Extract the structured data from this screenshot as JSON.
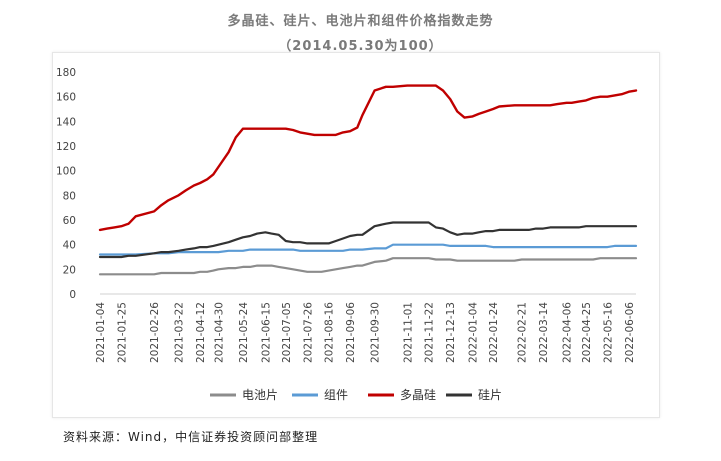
{
  "chart_data": {
    "type": "line",
    "title": "多晶硅、硅片、电池片和组件价格指数走势",
    "subtitle": "（2014.05.30为100）",
    "source": "资料来源：Wind，中信证券投资顾问部整理",
    "xlabel": "",
    "ylabel": "",
    "ylim": [
      0,
      180
    ],
    "yticks": [
      0,
      20,
      40,
      60,
      80,
      100,
      120,
      140,
      160,
      180
    ],
    "grid": false,
    "legend_position": "bottom",
    "x_tick_labels": [
      "2021-01-04",
      "2021-01-25",
      "2021-02-26",
      "2021-03-22",
      "2021-04-12",
      "2021-04-30",
      "2021-05-24",
      "2021-06-15",
      "2021-07-05",
      "2021-07-26",
      "2021-08-16",
      "2021-09-06",
      "2021-09-30",
      "2021-11-01",
      "2021-11-22",
      "2021-12-13",
      "2022-01-04",
      "2022-01-24",
      "2022-02-21",
      "2022-03-14",
      "2022-04-06",
      "2022-04-25",
      "2022-05-16",
      "2022-06-06"
    ],
    "x": [
      "2021-01-04",
      "2021-01-11",
      "2021-01-18",
      "2021-01-25",
      "2021-02-01",
      "2021-02-08",
      "2021-02-26",
      "2021-03-05",
      "2021-03-12",
      "2021-03-22",
      "2021-03-29",
      "2021-04-06",
      "2021-04-12",
      "2021-04-19",
      "2021-04-25",
      "2021-04-30",
      "2021-05-10",
      "2021-05-17",
      "2021-05-24",
      "2021-05-31",
      "2021-06-07",
      "2021-06-15",
      "2021-06-21",
      "2021-06-28",
      "2021-07-05",
      "2021-07-12",
      "2021-07-19",
      "2021-07-26",
      "2021-08-02",
      "2021-08-09",
      "2021-08-16",
      "2021-08-23",
      "2021-08-30",
      "2021-09-06",
      "2021-09-13",
      "2021-09-18",
      "2021-09-30",
      "2021-10-11",
      "2021-10-18",
      "2021-11-01",
      "2021-11-08",
      "2021-11-15",
      "2021-11-22",
      "2021-11-29",
      "2021-12-06",
      "2021-12-13",
      "2021-12-20",
      "2021-12-27",
      "2022-01-04",
      "2022-01-10",
      "2022-01-17",
      "2022-01-24",
      "2022-01-30",
      "2022-02-14",
      "2022-02-21",
      "2022-02-28",
      "2022-03-07",
      "2022-03-14",
      "2022-03-21",
      "2022-03-28",
      "2022-04-06",
      "2022-04-11",
      "2022-04-18",
      "2022-04-25",
      "2022-05-02",
      "2022-05-09",
      "2022-05-16",
      "2022-05-23",
      "2022-05-30",
      "2022-06-06",
      "2022-06-13"
    ],
    "series": [
      {
        "name": "电池片",
        "color": "#8c8c8c",
        "values": [
          16,
          16,
          16,
          16,
          16,
          16,
          16,
          17,
          17,
          17,
          17,
          17,
          18,
          18,
          19,
          20,
          21,
          21,
          22,
          22,
          23,
          23,
          23,
          22,
          21,
          20,
          19,
          18,
          18,
          18,
          19,
          20,
          21,
          22,
          23,
          23,
          26,
          27,
          29,
          29,
          29,
          29,
          29,
          28,
          28,
          28,
          27,
          27,
          27,
          27,
          27,
          27,
          27,
          27,
          28,
          28,
          28,
          28,
          28,
          28,
          28,
          28,
          28,
          28,
          28,
          29,
          29,
          29,
          29,
          29,
          29
        ]
      },
      {
        "name": "组件",
        "color": "#5b9bd5",
        "values": [
          32,
          32,
          32,
          32,
          32,
          32,
          33,
          33,
          33,
          34,
          34,
          34,
          34,
          34,
          34,
          34,
          35,
          35,
          35,
          36,
          36,
          36,
          36,
          36,
          36,
          36,
          35,
          35,
          35,
          35,
          35,
          35,
          35,
          36,
          36,
          36,
          37,
          37,
          40,
          40,
          40,
          40,
          40,
          40,
          40,
          39,
          39,
          39,
          39,
          39,
          39,
          38,
          38,
          38,
          38,
          38,
          38,
          38,
          38,
          38,
          38,
          38,
          38,
          38,
          38,
          38,
          38,
          39,
          39,
          39,
          39
        ]
      },
      {
        "name": "多晶硅",
        "color": "#c00000",
        "values": [
          52,
          53,
          54,
          55,
          57,
          63,
          67,
          72,
          76,
          80,
          84,
          88,
          90,
          93,
          97,
          103,
          115,
          127,
          134,
          134,
          134,
          134,
          134,
          134,
          134,
          133,
          131,
          130,
          129,
          129,
          129,
          129,
          131,
          132,
          135,
          145,
          165,
          168,
          168,
          169,
          169,
          169,
          169,
          169,
          165,
          158,
          148,
          143,
          144,
          146,
          148,
          150,
          152,
          153,
          153,
          153,
          153,
          153,
          153,
          154,
          155,
          155,
          156,
          157,
          159,
          160,
          160,
          161,
          162,
          164,
          165
        ]
      },
      {
        "name": "硅片",
        "color": "#333333",
        "values": [
          30,
          30,
          30,
          30,
          31,
          31,
          33,
          34,
          34,
          35,
          36,
          37,
          38,
          38,
          39,
          40,
          42,
          44,
          46,
          47,
          49,
          50,
          49,
          48,
          43,
          42,
          42,
          41,
          41,
          41,
          41,
          43,
          45,
          47,
          48,
          48,
          55,
          57,
          58,
          58,
          58,
          58,
          58,
          54,
          53,
          50,
          48,
          49,
          49,
          50,
          51,
          51,
          52,
          52,
          52,
          52,
          53,
          53,
          54,
          54,
          54,
          54,
          54,
          55,
          55,
          55,
          55,
          55,
          55,
          55,
          55
        ]
      }
    ]
  }
}
